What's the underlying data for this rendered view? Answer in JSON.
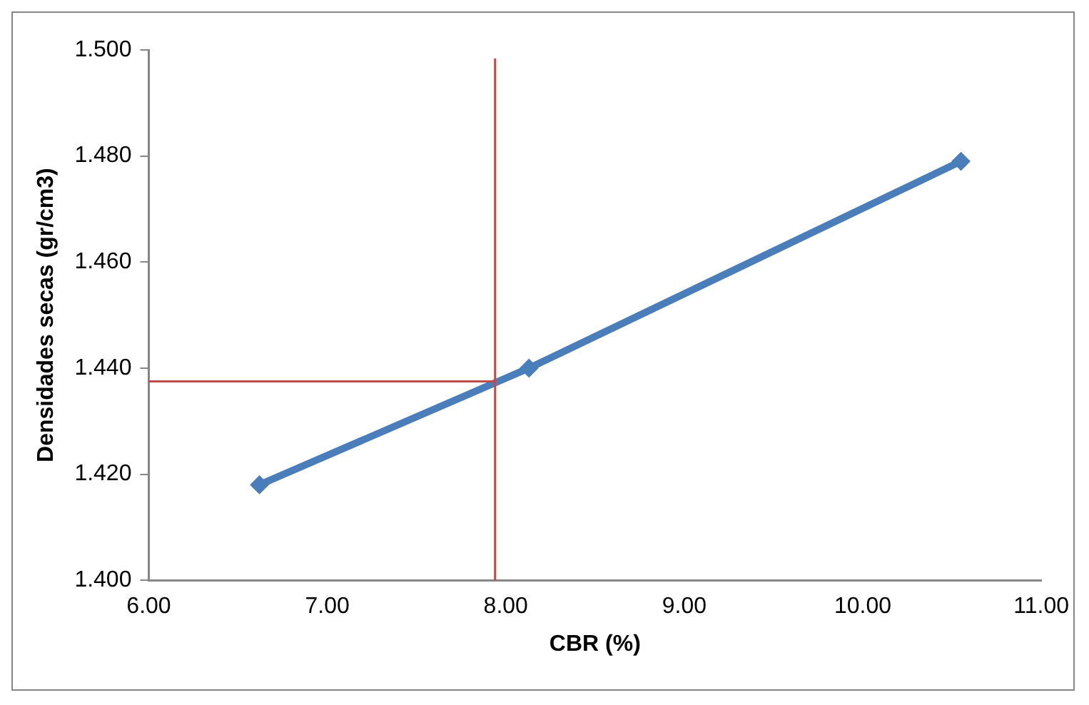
{
  "chart_data": {
    "type": "line",
    "xlabel": "CBR (%)",
    "ylabel": "Densidades secas (gr/cm3)",
    "x": [
      6.62,
      8.13,
      10.55
    ],
    "series": [
      {
        "color": "#4a7ebb",
        "values": [
          1.418,
          1.44,
          1.479
        ]
      }
    ],
    "xlim": [
      6,
      11
    ],
    "xticks": [
      {
        "value": 6,
        "label": "6.00"
      },
      {
        "value": 7,
        "label": "7.00"
      },
      {
        "value": 8,
        "label": "8.00"
      },
      {
        "value": 9,
        "label": "9.00"
      },
      {
        "value": 10,
        "label": "10.00"
      },
      {
        "value": 11,
        "label": "11.00"
      }
    ],
    "ylim": [
      1.4,
      1.5
    ],
    "yticks": [
      {
        "value": 1.4,
        "label": "1.400"
      },
      {
        "value": 1.42,
        "label": "1.420"
      },
      {
        "value": 1.44,
        "label": "1.440"
      },
      {
        "value": 1.46,
        "label": "1.460"
      },
      {
        "value": 1.48,
        "label": "1.480"
      },
      {
        "value": 1.5,
        "label": "1.500"
      }
    ],
    "ref_lines": [
      {
        "axis": "x",
        "value": 7.94,
        "color": "#be4b48"
      },
      {
        "axis": "y",
        "value": 1.4375,
        "color": "#be4b48"
      }
    ],
    "grid": false,
    "legend": false,
    "marker": "diamond",
    "line_style": "solid"
  }
}
